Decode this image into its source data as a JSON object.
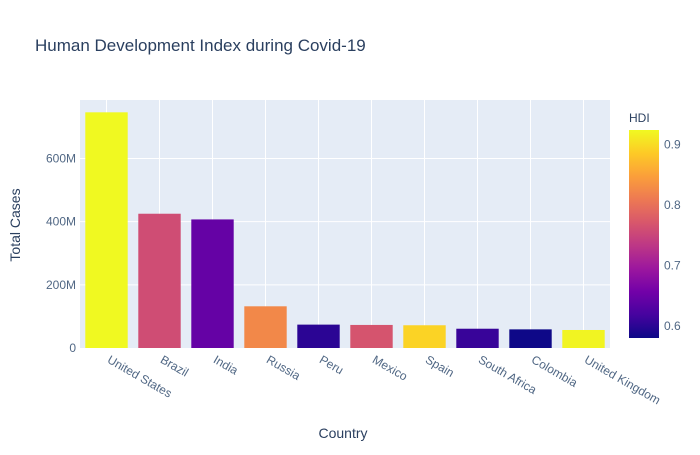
{
  "chart_data": {
    "type": "bar",
    "title": "Human Development Index during Covid-19",
    "xlabel": "Country",
    "ylabel": "Total Cases",
    "categories": [
      "United States",
      "Brazil",
      "India",
      "Russia",
      "Peru",
      "Mexico",
      "Spain",
      "South Africa",
      "Colombia",
      "United Kingdom"
    ],
    "values": [
      746000000,
      425000000,
      407000000,
      132000000,
      74000000,
      73000000,
      72000000,
      61000000,
      59000000,
      57000000
    ],
    "hdi": [
      0.924,
      0.759,
      0.645,
      0.824,
      0.6,
      0.767,
      0.893,
      0.609,
      0.581,
      0.92
    ],
    "ylim": [
      0,
      785000000
    ],
    "yticks": [
      {
        "value": 0,
        "label": "0"
      },
      {
        "value": 200000000,
        "label": "200M"
      },
      {
        "value": 400000000,
        "label": "400M"
      },
      {
        "value": 600000000,
        "label": "600M"
      }
    ],
    "colorbar": {
      "title": "HDI",
      "range": [
        0.58,
        0.924
      ],
      "ticks": [
        {
          "value": 0.6,
          "label": "0.6"
        },
        {
          "value": 0.7,
          "label": "0.7"
        },
        {
          "value": 0.8,
          "label": "0.8"
        },
        {
          "value": 0.9,
          "label": "0.9"
        }
      ],
      "colorscale": [
        "#0d0887",
        "#46039f",
        "#7201a8",
        "#9c179e",
        "#bd3786",
        "#d8576b",
        "#ed7953",
        "#fb9f3a",
        "#fdca26",
        "#f0f921"
      ]
    },
    "grid": true,
    "legend": "colorbar-right",
    "colors": {
      "plot_bg": "#e5ecf6",
      "grid": "#ffffff",
      "text": "#2a3f5f",
      "label_text": "#506784"
    }
  }
}
